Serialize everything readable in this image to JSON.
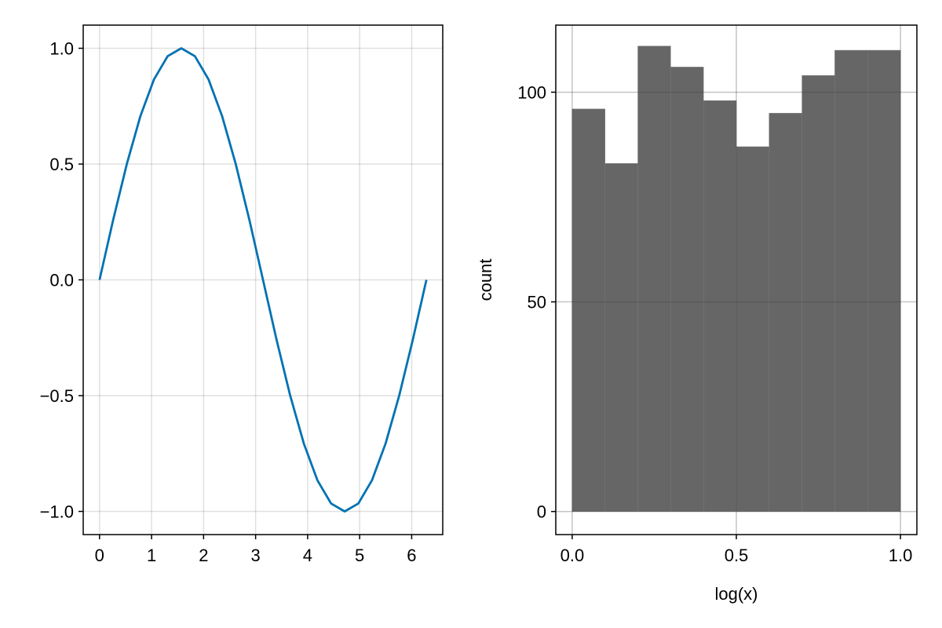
{
  "chart_data": [
    {
      "type": "line",
      "title": "",
      "xlabel": "",
      "ylabel": "",
      "xlim": [
        -0.314,
        6.597
      ],
      "ylim": [
        -1.1,
        1.1
      ],
      "grid": true,
      "x_ticks": [
        0,
        1,
        2,
        3,
        4,
        5,
        6
      ],
      "x_tick_labels": [
        "0",
        "1",
        "2",
        "3",
        "4",
        "5",
        "6"
      ],
      "y_ticks": [
        -1.0,
        -0.5,
        0.0,
        0.5,
        1.0
      ],
      "y_tick_labels": [
        "−1.0",
        "−0.5",
        "0.0",
        "0.5",
        "1.0"
      ],
      "series": [
        {
          "color": "#0072B2",
          "x": [
            0,
            0.262,
            0.524,
            0.785,
            1.047,
            1.309,
            1.571,
            1.833,
            2.094,
            2.356,
            2.618,
            2.88,
            3.142,
            3.403,
            3.665,
            3.927,
            4.189,
            4.451,
            4.712,
            4.974,
            5.236,
            5.498,
            5.76,
            6.021,
            6.283
          ],
          "y": [
            0,
            0.259,
            0.5,
            0.707,
            0.866,
            0.966,
            1.0,
            0.966,
            0.866,
            0.707,
            0.5,
            0.259,
            0,
            -0.259,
            -0.5,
            -0.707,
            -0.866,
            -0.966,
            -1.0,
            -0.966,
            -0.866,
            -0.707,
            -0.5,
            -0.259,
            0
          ]
        }
      ]
    },
    {
      "type": "bar",
      "title": "",
      "xlabel": "log(x)",
      "ylabel": "count",
      "xlim": [
        -0.05,
        1.05
      ],
      "ylim": [
        -5.5,
        116
      ],
      "grid": true,
      "x_ticks": [
        0.0,
        0.5,
        1.0
      ],
      "x_tick_labels": [
        "0.0",
        "0.5",
        "1.0"
      ],
      "y_ticks": [
        0,
        50,
        100
      ],
      "y_tick_labels": [
        "0",
        "50",
        "100"
      ],
      "bar_color": "#666666",
      "bin_edges": [
        0.0,
        0.1,
        0.2,
        0.3,
        0.4,
        0.5,
        0.6,
        0.7,
        0.8,
        0.9,
        1.0
      ],
      "values": [
        96,
        83,
        111,
        106,
        98,
        87,
        95,
        104,
        110,
        110
      ]
    }
  ]
}
